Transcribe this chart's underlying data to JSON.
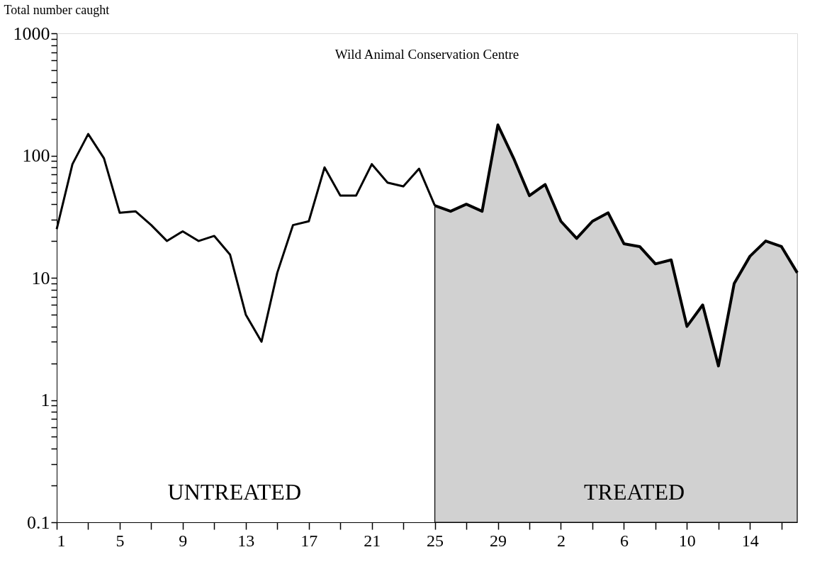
{
  "chart_data": {
    "type": "line",
    "title": "Wild Animal Conservation Centre",
    "ylabel": "Total number caught",
    "categories": [
      "1",
      null,
      null,
      null,
      "5",
      null,
      null,
      null,
      "9",
      null,
      null,
      null,
      "13",
      null,
      null,
      null,
      "17",
      null,
      null,
      null,
      "21",
      null,
      null,
      null,
      "25",
      null,
      null,
      null,
      "29",
      null,
      null,
      null,
      "2",
      null,
      null,
      null,
      "6",
      null,
      null,
      null,
      "10",
      null,
      null,
      null,
      "14",
      null,
      null,
      null
    ],
    "series": [
      {
        "color": "#000000",
        "values": [
          25,
          85,
          150,
          95,
          34,
          35,
          27,
          20,
          24,
          20,
          22,
          15.5,
          5,
          3,
          11,
          27,
          29,
          80,
          47,
          47,
          85,
          60,
          56,
          78,
          39,
          null,
          null,
          null,
          null,
          null,
          null,
          null,
          null,
          null,
          null,
          null,
          null,
          null,
          null,
          null,
          null,
          null,
          null,
          null,
          null,
          null,
          null,
          null
        ]
      },
      {
        "type": "area",
        "color": "#000000",
        "values": [
          null,
          null,
          null,
          null,
          null,
          null,
          null,
          null,
          null,
          null,
          null,
          null,
          null,
          null,
          null,
          null,
          null,
          null,
          null,
          null,
          null,
          null,
          null,
          null,
          39,
          35,
          40,
          35,
          178,
          95,
          47,
          58,
          29,
          21,
          29,
          34,
          19,
          18,
          13,
          14,
          4,
          6,
          1.9,
          9,
          15,
          20,
          18,
          11
        ]
      }
    ],
    "annotations": [
      "UNTREATED",
      "TREATED"
    ],
    "log": "y",
    "ylim": [
      0.1,
      1000
    ],
    "yticks": [
      0.1,
      {
        "value": 0.2,
        "label": null
      },
      {
        "value": 0.3,
        "label": null
      },
      {
        "value": 0.4,
        "label": null
      },
      {
        "value": 0.5,
        "label": null
      },
      {
        "value": 0.6,
        "label": null
      },
      {
        "value": 0.7,
        "label": null
      },
      {
        "value": 0.8,
        "label": null
      },
      {
        "value": 0.9,
        "label": null
      },
      1,
      {
        "value": 2,
        "label": null
      },
      {
        "value": 3,
        "label": null
      },
      {
        "value": 4,
        "label": null
      },
      {
        "value": 5,
        "label": null
      },
      {
        "value": 6,
        "label": null
      },
      {
        "value": 7,
        "label": null
      },
      {
        "value": 8,
        "label": null
      },
      {
        "value": 9,
        "label": null
      },
      10,
      {
        "value": 20,
        "label": null
      },
      {
        "value": 30,
        "label": null
      },
      {
        "value": 40,
        "label": null
      },
      {
        "value": 50,
        "label": null
      },
      {
        "value": 60,
        "label": null
      },
      {
        "value": 70,
        "label": null
      },
      {
        "value": 80,
        "label": null
      },
      {
        "value": 90,
        "label": null
      },
      100,
      {
        "value": 200,
        "label": null
      },
      {
        "value": 300,
        "label": null
      },
      {
        "value": 400,
        "label": null
      },
      {
        "value": 500,
        "label": null
      },
      {
        "value": 600,
        "label": null
      },
      {
        "value": 700,
        "label": null
      },
      {
        "value": 800,
        "label": null
      },
      {
        "value": 900,
        "label": null
      },
      1000
    ],
    "grid": false,
    "marker": "none",
    "line_style": "solid"
  }
}
